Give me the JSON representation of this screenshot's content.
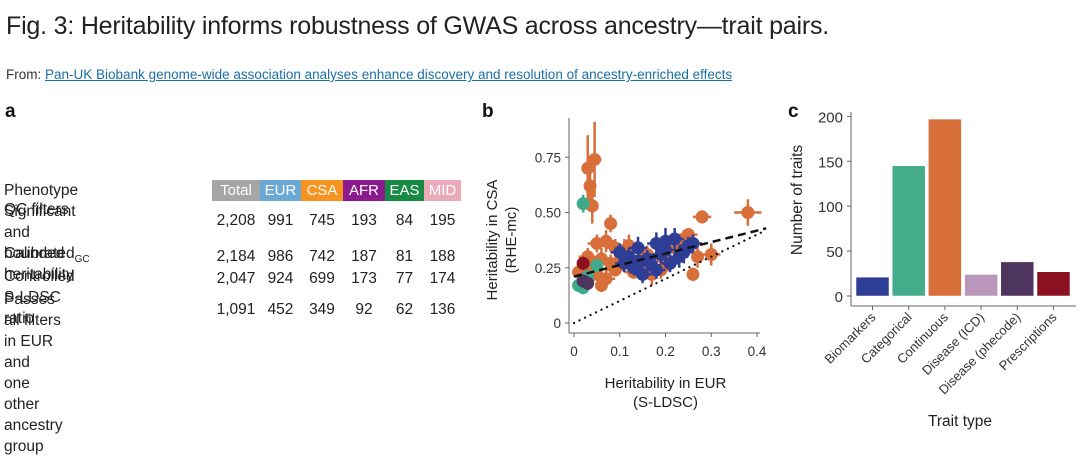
{
  "header": {
    "title": "Fig. 3: Heritability informs robustness of GWAS across ancestry—trait pairs.",
    "from_label": "From:",
    "from_link": "Pan-UK Biobank genome-wide association analyses enhance discovery and resolution of ancestry-enriched effects"
  },
  "panels": {
    "a": "a",
    "b": "b",
    "c": "c"
  },
  "table": {
    "title_row": "Phenotype QC filters",
    "columns": [
      {
        "label": "Total",
        "color": "#a6a6a6"
      },
      {
        "label": "EUR",
        "color": "#6aa9d6"
      },
      {
        "label": "CSA",
        "color": "#f7931e"
      },
      {
        "label": "AFR",
        "color": "#8b1a8f"
      },
      {
        "label": "EAS",
        "color": "#178a43"
      },
      {
        "label": "MID",
        "color": "#eaaab9"
      }
    ],
    "rows": [
      {
        "label_lines": [
          "Significant and bounded",
          "heritability"
        ],
        "values": [
          "2,208",
          "991",
          "745",
          "193",
          "84",
          "195"
        ]
      },
      {
        "label_main": "Calibrated",
        "label_sub": "GC",
        "values": [
          "2,184",
          "986",
          "742",
          "187",
          "81",
          "188"
        ]
      },
      {
        "label_lines": [
          "Controlled S-LDSC ratio"
        ],
        "values": [
          "2,047",
          "924",
          "699",
          "173",
          "77",
          "174"
        ]
      },
      {
        "label_lines": [
          "Passes all filters in EUR and",
          "one other ancestry group"
        ],
        "values": [
          "1,091",
          "452",
          "349",
          "92",
          "62",
          "136"
        ]
      }
    ]
  },
  "chart_data": [
    {
      "type": "scatter",
      "title": "",
      "xlabel": "Heritability in EUR (S-LDSC)",
      "xlabel_lines": [
        "Heritability in EUR",
        "(S-LDSC)"
      ],
      "ylabel_lines": [
        "Heritability in CSA",
        "(RHE-mc)"
      ],
      "xlim": [
        0,
        0.42
      ],
      "ylim": [
        0,
        0.9
      ],
      "xticks": [
        0,
        0.1,
        0.2,
        0.3,
        0.4
      ],
      "xtick_labels": [
        "0",
        "0.1",
        "0.2",
        "0.3",
        "0.4"
      ],
      "yticks": [
        0,
        0.25,
        0.5,
        0.75
      ],
      "ytick_labels": [
        "0",
        "0.25",
        "0.50",
        "0.75"
      ],
      "reference_lines": [
        {
          "name": "identity",
          "style": "dotted",
          "slope": 1,
          "intercept": 0
        },
        {
          "name": "fit",
          "style": "dashed",
          "slope": 0.52,
          "intercept": 0.21
        }
      ],
      "series": [
        {
          "name": "Continuous",
          "color": "#d86f3a",
          "points": [
            [
              0.03,
              0.7,
              0.15,
              0.01
            ],
            [
              0.045,
              0.74,
              0.17,
              0.015
            ],
            [
              0.035,
              0.62,
              0.1,
              0.01
            ],
            [
              0.04,
              0.53,
              0.08,
              0.01
            ],
            [
              0.08,
              0.45,
              0.04,
              0.01
            ],
            [
              0.38,
              0.5,
              0.06,
              0.03
            ],
            [
              0.28,
              0.48,
              0.03,
              0.02
            ],
            [
              0.26,
              0.22,
              0.03,
              0.01
            ],
            [
              0.27,
              0.3,
              0.05,
              0.01
            ],
            [
              0.3,
              0.31,
              0.05,
              0.02
            ],
            [
              0.24,
              0.38,
              0.04,
              0.02
            ],
            [
              0.25,
              0.4,
              0.03,
              0.02
            ],
            [
              0.05,
              0.36,
              0.04,
              0.02
            ],
            [
              0.07,
              0.37,
              0.05,
              0.02
            ],
            [
              0.09,
              0.34,
              0.04,
              0.02
            ],
            [
              0.11,
              0.33,
              0.05,
              0.02
            ],
            [
              0.03,
              0.3,
              0.04,
              0.02
            ],
            [
              0.06,
              0.29,
              0.05,
              0.02
            ],
            [
              0.08,
              0.27,
              0.04,
              0.02
            ],
            [
              0.04,
              0.25,
              0.04,
              0.02
            ],
            [
              0.02,
              0.26,
              0.03,
              0.01
            ],
            [
              0.05,
              0.22,
              0.03,
              0.02
            ],
            [
              0.07,
              0.2,
              0.04,
              0.02
            ],
            [
              0.09,
              0.24,
              0.03,
              0.02
            ],
            [
              0.1,
              0.28,
              0.04,
              0.02
            ],
            [
              0.13,
              0.23,
              0.03,
              0.02
            ],
            [
              0.15,
              0.27,
              0.04,
              0.02
            ],
            [
              0.17,
              0.22,
              0.05,
              0.02
            ],
            [
              0.16,
              0.31,
              0.04,
              0.02
            ],
            [
              0.19,
              0.24,
              0.04,
              0.02
            ],
            [
              0.03,
              0.19,
              0.03,
              0.01
            ],
            [
              0.12,
              0.35,
              0.05,
              0.02
            ],
            [
              0.22,
              0.34,
              0.05,
              0.02
            ],
            [
              0.2,
              0.28,
              0.04,
              0.02
            ],
            [
              0.01,
              0.23,
              0.03,
              0.01
            ],
            [
              0.06,
              0.17,
              0.03,
              0.01
            ]
          ]
        },
        {
          "name": "Biomarkers",
          "color": "#2e3d96",
          "points": [
            [
              0.12,
              0.3,
              0.04,
              0.02
            ],
            [
              0.14,
              0.34,
              0.05,
              0.02
            ],
            [
              0.16,
              0.29,
              0.04,
              0.02
            ],
            [
              0.18,
              0.36,
              0.05,
              0.02
            ],
            [
              0.2,
              0.37,
              0.06,
              0.02
            ],
            [
              0.22,
              0.38,
              0.05,
              0.02
            ],
            [
              0.19,
              0.31,
              0.04,
              0.02
            ],
            [
              0.21,
              0.27,
              0.04,
              0.02
            ],
            [
              0.23,
              0.3,
              0.05,
              0.02
            ],
            [
              0.25,
              0.35,
              0.04,
              0.02
            ],
            [
              0.13,
              0.25,
              0.03,
              0.02
            ],
            [
              0.15,
              0.22,
              0.04,
              0.02
            ],
            [
              0.17,
              0.26,
              0.04,
              0.02
            ],
            [
              0.11,
              0.27,
              0.04,
              0.02
            ],
            [
              0.24,
              0.32,
              0.05,
              0.02
            ],
            [
              0.1,
              0.32,
              0.04,
              0.02
            ],
            [
              0.18,
              0.24,
              0.04,
              0.02
            ],
            [
              0.14,
              0.28,
              0.04,
              0.02
            ],
            [
              0.2,
              0.33,
              0.05,
              0.02
            ],
            [
              0.26,
              0.36,
              0.04,
              0.02
            ]
          ]
        },
        {
          "name": "Categorical",
          "color": "#3faa8a",
          "points": [
            [
              0.02,
              0.54,
              0.04,
              0.01
            ],
            [
              0.01,
              0.17,
              0.03,
              0.01
            ],
            [
              0.02,
              0.16,
              0.03,
              0.01
            ],
            [
              0.03,
              0.21,
              0.03,
              0.01
            ],
            [
              0.05,
              0.26,
              0.03,
              0.01
            ]
          ]
        },
        {
          "name": "Disease (phecode)",
          "color": "#4e3560",
          "points": [
            [
              0.02,
              0.19,
              0.03,
              0.01
            ],
            [
              0.03,
              0.18,
              0.03,
              0.01
            ]
          ]
        },
        {
          "name": "Prescriptions",
          "color": "#8b1020",
          "points": [
            [
              0.02,
              0.27,
              0.03,
              0.01
            ]
          ]
        }
      ]
    },
    {
      "type": "bar",
      "title": "",
      "xlabel": "Trait type",
      "ylabel": "Number of traits",
      "ylim": [
        0,
        200
      ],
      "yticks": [
        0,
        50,
        100,
        150,
        200
      ],
      "ytick_labels": [
        "0",
        "50",
        "100",
        "150",
        "200"
      ],
      "categories": [
        "Biomarkers",
        "Categorical",
        "Continuous",
        "Disease (ICD)",
        "Disease (phecode)",
        "Prescriptions"
      ],
      "values": [
        21,
        145,
        197,
        24,
        38,
        27
      ],
      "colors": [
        "#2e3d96",
        "#44ab8b",
        "#d86f3a",
        "#b897bb",
        "#4e3560",
        "#8b1020"
      ]
    }
  ]
}
